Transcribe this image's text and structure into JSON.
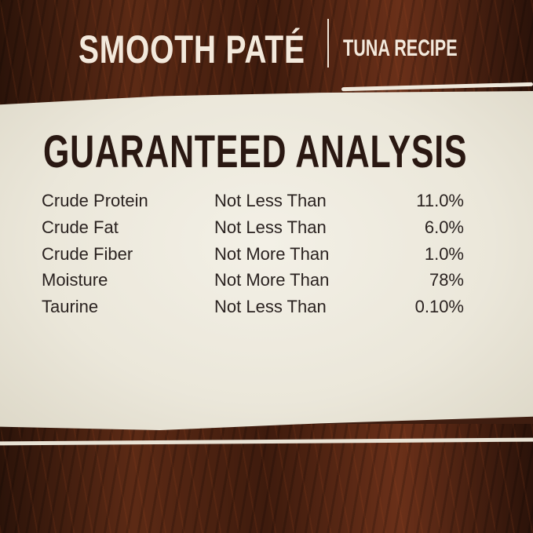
{
  "header": {
    "product": "SMOOTH PATÉ",
    "recipe": "TUNA RECIPE"
  },
  "title": "GUARANTEED ANALYSIS",
  "rows": [
    {
      "nutrient": "Crude Protein",
      "qualifier": "Not Less Than",
      "value": "11.0%"
    },
    {
      "nutrient": "Crude Fat",
      "qualifier": "Not Less Than",
      "value": "6.0%"
    },
    {
      "nutrient": "Crude Fiber",
      "qualifier": "Not More Than",
      "value": "1.0%"
    },
    {
      "nutrient": "Moisture",
      "qualifier": "Not More Than",
      "value": "78%"
    },
    {
      "nutrient": "Taurine",
      "qualifier": "Not Less Than",
      "value": "0.10%"
    }
  ],
  "colors": {
    "wood": "#4a2212",
    "paper": "#efebe0",
    "title_text": "#2a1812",
    "header_text": "#f3e9dc"
  }
}
